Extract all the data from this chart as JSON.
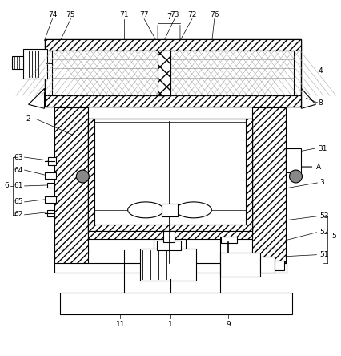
{
  "bg_color": "#ffffff",
  "fig_width": 4.27,
  "fig_height": 4.44,
  "dpi": 100
}
